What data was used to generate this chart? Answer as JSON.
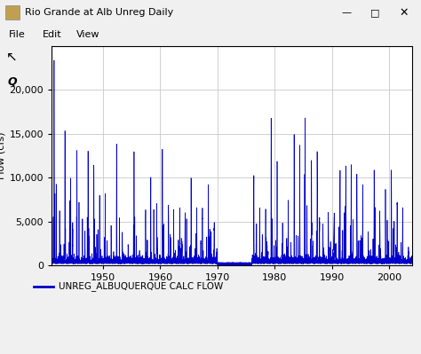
{
  "title": "Rio Grande at Alb Unreg Daily",
  "ylabel": "Flow (cfs)",
  "line_color": "#0000CC",
  "line_width": 0.5,
  "legend_label": "UNREG_ALBUQUERQUE CALC FLOW",
  "start_year": 1941,
  "end_year": 2003,
  "ylim": [
    0,
    25000
  ],
  "yticks": [
    0,
    5000,
    10000,
    15000,
    20000
  ],
  "xticks": [
    1950,
    1960,
    1970,
    1980,
    1990,
    2000
  ],
  "grid_color": "#c8c8c8",
  "bg_color": "#f0f0f0",
  "plot_bg": "#ffffff",
  "window_title": "Rio Grande at Alb Unreg Daily",
  "menu_items": [
    "File",
    "Edit",
    "View"
  ],
  "annual_peaks": {
    "1941": 22500,
    "1942": 4800,
    "1943": 13500,
    "1944": 9500,
    "1945": 12000,
    "1946": 4000,
    "1947": 12100,
    "1948": 10500,
    "1949": 6900,
    "1950": 7000,
    "1951": 3000,
    "1952": 12100,
    "1953": 2500,
    "1954": 1500,
    "1955": 11500,
    "1956": 1200,
    "1957": 5500,
    "1958": 9500,
    "1959": 5800,
    "1960": 12500,
    "1961": 5900,
    "1962": 6000,
    "1963": 5500,
    "1964": 5400,
    "1965": 8800,
    "1966": 5700,
    "1967": 5200,
    "1968": 7900,
    "1969": 3700,
    "1970": 500,
    "1971": 500,
    "1972": 500,
    "1973": 500,
    "1974": 500,
    "1975": 600,
    "1976": 9000,
    "1977": 5600,
    "1978": 5200,
    "1979": 15800,
    "1980": 11000,
    "1981": 4100,
    "1982": 6600,
    "1983": 13400,
    "1984": 12000,
    "1985": 16500,
    "1986": 10800,
    "1987": 12000,
    "1988": 3600,
    "1989": 5000,
    "1990": 4900,
    "1991": 9500,
    "1992": 10400,
    "1993": 10100,
    "1994": 9400,
    "1995": 8000,
    "1996": 3100,
    "1997": 9700,
    "1998": 5000,
    "1999": 8000,
    "2000": 9700,
    "2001": 6000,
    "2002": 5400
  }
}
